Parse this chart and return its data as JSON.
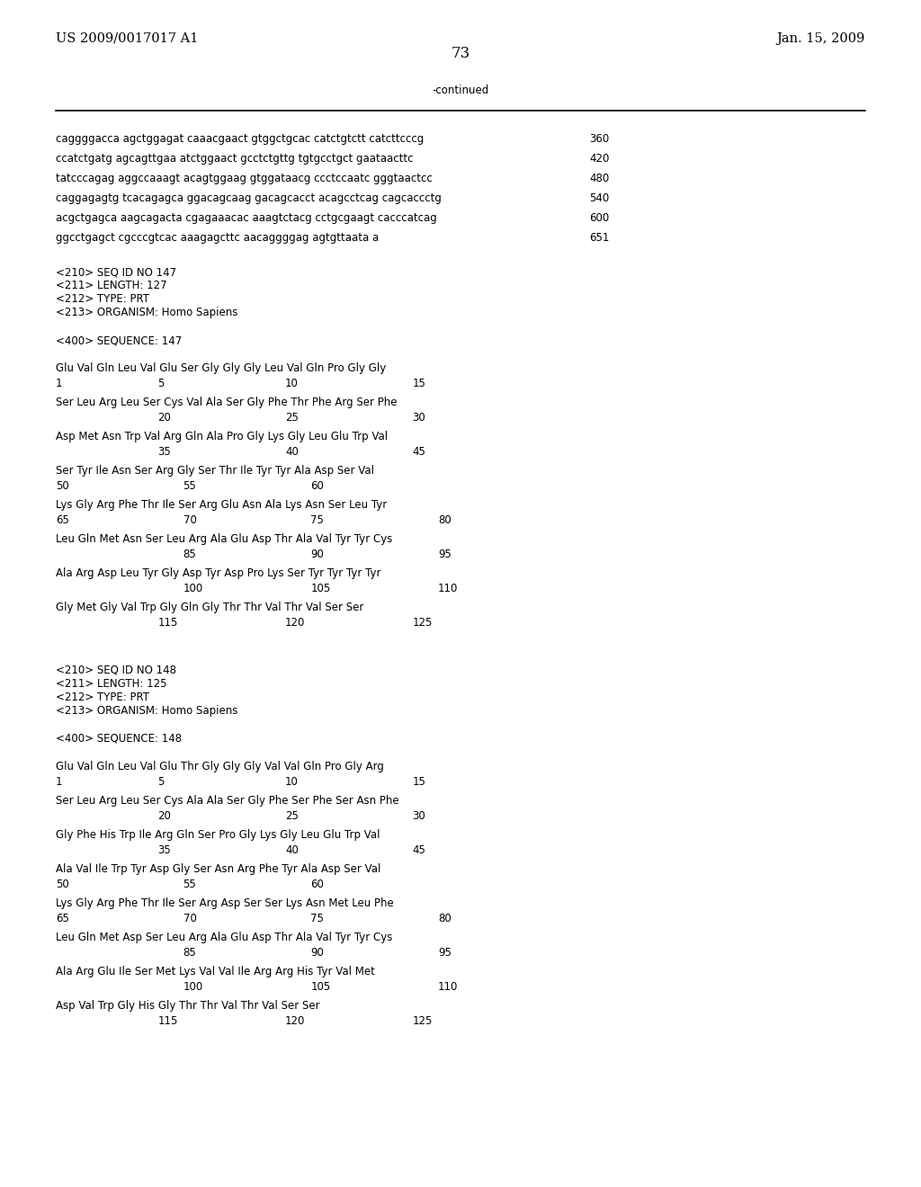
{
  "header_left": "US 2009/0017017 A1",
  "header_right": "Jan. 15, 2009",
  "page_number": "73",
  "continued_label": "-continued",
  "background_color": "#ffffff",
  "text_color": "#000000",
  "font_size_header": 10.5,
  "font_size_body": 8.5,
  "font_size_page": 12,
  "content": [
    {
      "type": "seq",
      "text": "caggggacca agctggagat caaacgaact gtggctgcac catctgtctt catcttcccg",
      "num": "360"
    },
    {
      "type": "seq",
      "text": "ccatctgatg agcagttgaa atctggaact gcctctgttg tgtgcctgct gaataacttc",
      "num": "420"
    },
    {
      "type": "seq",
      "text": "tatcccagag aggccaaagt acagtggaag gtggataacg ccctccaatc gggtaactcc",
      "num": "480"
    },
    {
      "type": "seq",
      "text": "caggagagtg tcacagagca ggacagcaag gacagcacct acagcctcag cagcaccctg",
      "num": "540"
    },
    {
      "type": "seq",
      "text": "acgctgagca aagcagacta cgagaaacac aaagtctacg cctgcgaagt cacccatcag",
      "num": "600"
    },
    {
      "type": "seq",
      "text": "ggcctgagct cgcccgtcac aaagagcttc aacaggggag agtgttaata a",
      "num": "651"
    },
    {
      "type": "blank"
    },
    {
      "type": "meta",
      "text": "<210> SEQ ID NO 147"
    },
    {
      "type": "meta",
      "text": "<211> LENGTH: 127"
    },
    {
      "type": "meta",
      "text": "<212> TYPE: PRT"
    },
    {
      "type": "meta",
      "text": "<213> ORGANISM: Homo Sapiens"
    },
    {
      "type": "blank"
    },
    {
      "type": "meta",
      "text": "<400> SEQUENCE: 147"
    },
    {
      "type": "blank"
    },
    {
      "type": "aa",
      "text": "Glu Val Gln Leu Val Glu Ser Gly Gly Gly Leu Val Gln Pro Gly Gly",
      "nums": [
        [
          "1",
          0
        ],
        [
          "5",
          4
        ],
        [
          "10",
          9
        ],
        [
          "15",
          14
        ]
      ]
    },
    {
      "type": "aa",
      "text": "Ser Leu Arg Leu Ser Cys Val Ala Ser Gly Phe Thr Phe Arg Ser Phe",
      "nums": [
        [
          "20",
          4
        ],
        [
          "25",
          9
        ],
        [
          "30",
          14
        ]
      ]
    },
    {
      "type": "aa",
      "text": "Asp Met Asn Trp Val Arg Gln Ala Pro Gly Lys Gly Leu Glu Trp Val",
      "nums": [
        [
          "35",
          4
        ],
        [
          "40",
          9
        ],
        [
          "45",
          14
        ]
      ]
    },
    {
      "type": "aa",
      "text": "Ser Tyr Ile Asn Ser Arg Gly Ser Thr Ile Tyr Tyr Ala Asp Ser Val",
      "nums": [
        [
          "50",
          0
        ],
        [
          "55",
          5
        ],
        [
          "60",
          10
        ]
      ]
    },
    {
      "type": "aa",
      "text": "Lys Gly Arg Phe Thr Ile Ser Arg Glu Asn Ala Lys Asn Ser Leu Tyr",
      "nums": [
        [
          "65",
          0
        ],
        [
          "70",
          5
        ],
        [
          "75",
          10
        ],
        [
          "80",
          15
        ]
      ]
    },
    {
      "type": "aa",
      "text": "Leu Gln Met Asn Ser Leu Arg Ala Glu Asp Thr Ala Val Tyr Tyr Cys",
      "nums": [
        [
          "85",
          5
        ],
        [
          "90",
          10
        ],
        [
          "95",
          15
        ]
      ]
    },
    {
      "type": "aa",
      "text": "Ala Arg Asp Leu Tyr Gly Asp Tyr Asp Pro Lys Ser Tyr Tyr Tyr Tyr",
      "nums": [
        [
          "100",
          5
        ],
        [
          "105",
          10
        ],
        [
          "110",
          15
        ]
      ]
    },
    {
      "type": "aa",
      "text": "Gly Met Gly Val Trp Gly Gln Gly Thr Thr Val Thr Val Ser Ser",
      "nums": [
        [
          "115",
          4
        ],
        [
          "120",
          9
        ],
        [
          "125",
          14
        ]
      ]
    },
    {
      "type": "blank"
    },
    {
      "type": "blank"
    },
    {
      "type": "meta",
      "text": "<210> SEQ ID NO 148"
    },
    {
      "type": "meta",
      "text": "<211> LENGTH: 125"
    },
    {
      "type": "meta",
      "text": "<212> TYPE: PRT"
    },
    {
      "type": "meta",
      "text": "<213> ORGANISM: Homo Sapiens"
    },
    {
      "type": "blank"
    },
    {
      "type": "meta",
      "text": "<400> SEQUENCE: 148"
    },
    {
      "type": "blank"
    },
    {
      "type": "aa",
      "text": "Glu Val Gln Leu Val Glu Thr Gly Gly Gly Val Val Gln Pro Gly Arg",
      "nums": [
        [
          "1",
          0
        ],
        [
          "5",
          4
        ],
        [
          "10",
          9
        ],
        [
          "15",
          14
        ]
      ]
    },
    {
      "type": "aa",
      "text": "Ser Leu Arg Leu Ser Cys Ala Ala Ser Gly Phe Ser Phe Ser Asn Phe",
      "nums": [
        [
          "20",
          4
        ],
        [
          "25",
          9
        ],
        [
          "30",
          14
        ]
      ]
    },
    {
      "type": "aa",
      "text": "Gly Phe His Trp Ile Arg Gln Ser Pro Gly Lys Gly Leu Glu Trp Val",
      "nums": [
        [
          "35",
          4
        ],
        [
          "40",
          9
        ],
        [
          "45",
          14
        ]
      ]
    },
    {
      "type": "aa",
      "text": "Ala Val Ile Trp Tyr Asp Gly Ser Asn Arg Phe Tyr Ala Asp Ser Val",
      "nums": [
        [
          "50",
          0
        ],
        [
          "55",
          5
        ],
        [
          "60",
          10
        ]
      ]
    },
    {
      "type": "aa",
      "text": "Lys Gly Arg Phe Thr Ile Ser Arg Asp Ser Ser Lys Asn Met Leu Phe",
      "nums": [
        [
          "65",
          0
        ],
        [
          "70",
          5
        ],
        [
          "75",
          10
        ],
        [
          "80",
          15
        ]
      ]
    },
    {
      "type": "aa",
      "text": "Leu Gln Met Asp Ser Leu Arg Ala Glu Asp Thr Ala Val Tyr Tyr Cys",
      "nums": [
        [
          "85",
          5
        ],
        [
          "90",
          10
        ],
        [
          "95",
          15
        ]
      ]
    },
    {
      "type": "aa",
      "text": "Ala Arg Glu Ile Ser Met Lys Val Val Ile Arg Arg His Tyr Val Met",
      "nums": [
        [
          "100",
          5
        ],
        [
          "105",
          10
        ],
        [
          "110",
          15
        ]
      ]
    },
    {
      "type": "aa",
      "text": "Asp Val Trp Gly His Gly Thr Thr Val Thr Val Ser Ser",
      "nums": [
        [
          "115",
          4
        ],
        [
          "120",
          9
        ],
        [
          "125",
          14
        ]
      ]
    }
  ]
}
